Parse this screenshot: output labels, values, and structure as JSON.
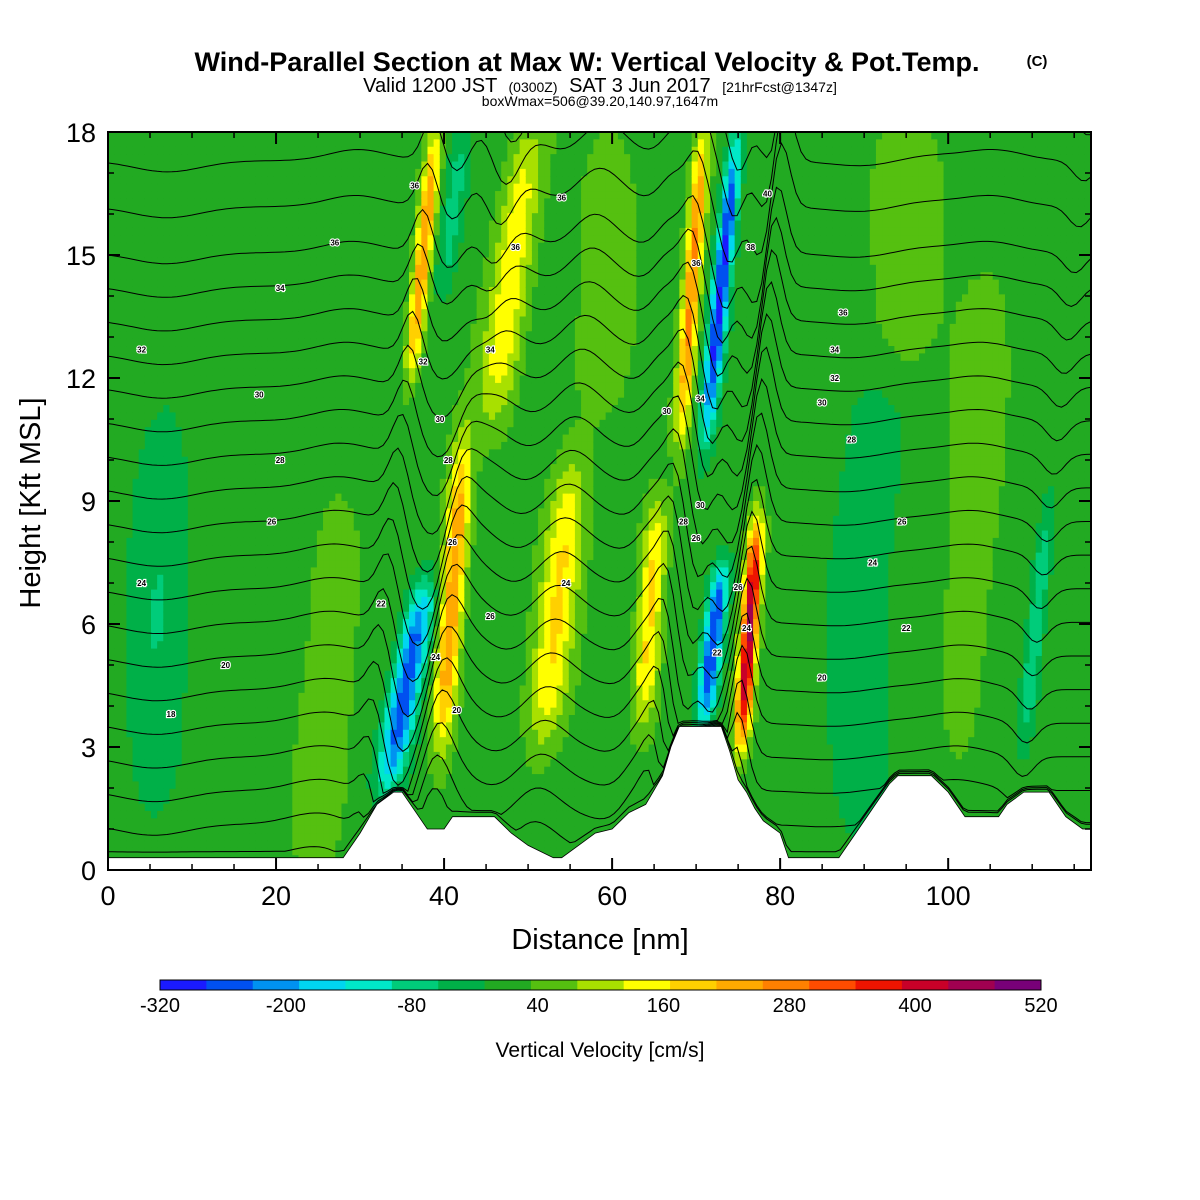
{
  "title": {
    "main": "Wind-Parallel Section at Max W: Vertical Velocity & Pot.Temp.",
    "copyright": "(C)",
    "valid_prefix": "Valid 1200 JST",
    "valid_utc": "(0300Z)",
    "valid_date": "SAT 3 Jun 2017",
    "forecast": "[21hrFcst@1347z]",
    "boxw": "boxWmax=506@39.20,140.97,1647m"
  },
  "chart_data": {
    "type": "heatmap",
    "xlabel": "Distance [nm]",
    "ylabel": "Height [Kft MSL]",
    "xlim": [
      0,
      117
    ],
    "ylim": [
      0,
      18
    ],
    "x_ticks": [
      0,
      20,
      40,
      60,
      80,
      100
    ],
    "y_ticks": [
      0,
      3,
      6,
      9,
      12,
      15,
      18
    ],
    "colorbar": {
      "label": "Vertical Velocity [cm/s]",
      "tick_labels": [
        "-320",
        "-200",
        "-80",
        "40",
        "160",
        "280",
        "400",
        "520"
      ],
      "range": [
        -320,
        520
      ],
      "colors": [
        "#1a1aff",
        "#0050f0",
        "#0092f0",
        "#00d6f0",
        "#00e8c8",
        "#00cc7a",
        "#00b048",
        "#22aa22",
        "#55c010",
        "#a8e000",
        "#ffff00",
        "#ffd000",
        "#ffaa00",
        "#ff8000",
        "#ff4c00",
        "#ee1400",
        "#c80028",
        "#a00050",
        "#780078"
      ]
    },
    "terrain": [
      [
        0,
        0.3
      ],
      [
        28,
        0.3
      ],
      [
        30,
        0.9
      ],
      [
        32,
        1.6
      ],
      [
        34,
        1.9
      ],
      [
        35,
        1.9
      ],
      [
        37,
        1.3
      ],
      [
        38,
        1.0
      ],
      [
        40,
        1.0
      ],
      [
        41,
        1.3
      ],
      [
        46,
        1.3
      ],
      [
        48,
        0.9
      ],
      [
        50,
        0.6
      ],
      [
        53,
        0.3
      ],
      [
        54,
        0.3
      ],
      [
        56,
        0.6
      ],
      [
        58,
        0.9
      ],
      [
        60,
        1.0
      ],
      [
        62,
        1.4
      ],
      [
        64,
        1.6
      ],
      [
        66,
        2.3
      ],
      [
        67,
        3.0
      ],
      [
        68,
        3.5
      ],
      [
        73,
        3.5
      ],
      [
        74,
        2.9
      ],
      [
        75,
        2.2
      ],
      [
        76,
        1.9
      ],
      [
        77,
        1.5
      ],
      [
        78,
        1.2
      ],
      [
        80,
        0.9
      ],
      [
        81,
        0.3
      ],
      [
        87,
        0.3
      ],
      [
        89,
        0.9
      ],
      [
        91,
        1.5
      ],
      [
        93,
        2.1
      ],
      [
        94,
        2.3
      ],
      [
        98,
        2.3
      ],
      [
        100,
        1.9
      ],
      [
        102,
        1.3
      ],
      [
        106,
        1.3
      ],
      [
        107,
        1.6
      ],
      [
        109,
        1.9
      ],
      [
        112,
        1.9
      ],
      [
        114,
        1.3
      ],
      [
        116,
        1.0
      ],
      [
        117,
        1.0
      ]
    ],
    "w_features": [
      {
        "x": 35.5,
        "zlo": 2.0,
        "zhi": 7.0,
        "w": -280,
        "sx": 1.8,
        "lean": 0.9
      },
      {
        "x": 41.0,
        "zlo": 3.0,
        "zhi": 10.5,
        "w": 240,
        "sx": 1.4,
        "lean": 0.35
      },
      {
        "x": 37.5,
        "zlo": 12.0,
        "zhi": 18.0,
        "w": 240,
        "sx": 1.0,
        "lean": 0.5
      },
      {
        "x": 41.0,
        "zlo": 14.0,
        "zhi": 18.0,
        "w": -90,
        "sx": 1.3,
        "lean": 0.6
      },
      {
        "x": 48.0,
        "zlo": 11.0,
        "zhi": 18.0,
        "w": 140,
        "sx": 2.2,
        "lean": 0.6
      },
      {
        "x": 53.5,
        "zlo": 3.0,
        "zhi": 10.0,
        "w": 150,
        "sx": 2.2,
        "lean": 0.5
      },
      {
        "x": 64.5,
        "zlo": 3.5,
        "zhi": 9.0,
        "w": 170,
        "sx": 1.5,
        "lean": 0.3
      },
      {
        "x": 72.0,
        "zlo": 3.6,
        "zhi": 7.5,
        "w": -300,
        "sx": 1.2,
        "lean": 0.55
      },
      {
        "x": 76.3,
        "zlo": 3.0,
        "zhi": 8.5,
        "w": 420,
        "sx": 0.95,
        "lean": 0.35
      },
      {
        "x": 69.5,
        "zlo": 10.5,
        "zhi": 18.0,
        "w": 250,
        "sx": 1.0,
        "lean": 0.35
      },
      {
        "x": 73.0,
        "zlo": 10.5,
        "zhi": 18.0,
        "w": -300,
        "sx": 1.0,
        "lean": 0.5
      },
      {
        "x": 110.5,
        "zlo": 3.0,
        "zhi": 9.0,
        "w": -110,
        "sx": 1.1,
        "lean": 0.5
      },
      {
        "x": 26.0,
        "zlo": 0.5,
        "zhi": 9.0,
        "w": 60,
        "sx": 3.0,
        "lean": 0.3
      },
      {
        "x": 6.0,
        "zlo": 0.5,
        "zhi": 12.0,
        "w": -60,
        "sx": 3.5,
        "lean": 0.1
      },
      {
        "x": 90.0,
        "zlo": 0.5,
        "zhi": 12.0,
        "w": -60,
        "sx": 4.0,
        "lean": 0.2
      },
      {
        "x": 95.0,
        "zlo": 12.0,
        "zhi": 18.0,
        "w": 60,
        "sx": 4.0,
        "lean": 0.3
      },
      {
        "x": 103.0,
        "zlo": 3.0,
        "zhi": 14.0,
        "w": 55,
        "sx": 3.0,
        "lean": 0.3
      },
      {
        "x": 59.0,
        "zlo": 11.0,
        "zhi": 18.0,
        "w": 60,
        "sx": 3.0,
        "lean": 0.4
      }
    ],
    "theta_contours": {
      "min": 18,
      "max": 40,
      "step": 1,
      "labels": [
        {
          "text": "36",
          "x": 27,
          "z": 15.3
        },
        {
          "text": "34",
          "x": 20.5,
          "z": 14.2
        },
        {
          "text": "32",
          "x": 4,
          "z": 12.7
        },
        {
          "text": "30",
          "x": 18,
          "z": 11.6
        },
        {
          "text": "28",
          "x": 20.5,
          "z": 10.0
        },
        {
          "text": "26",
          "x": 19.5,
          "z": 8.5
        },
        {
          "text": "24",
          "x": 4,
          "z": 7.0
        },
        {
          "text": "20",
          "x": 14,
          "z": 5.0
        },
        {
          "text": "18",
          "x": 7.5,
          "z": 3.8
        },
        {
          "text": "32",
          "x": 37.5,
          "z": 12.4
        },
        {
          "text": "30",
          "x": 39.5,
          "z": 11.0
        },
        {
          "text": "28",
          "x": 40.5,
          "z": 10.0
        },
        {
          "text": "26",
          "x": 41,
          "z": 8.0
        },
        {
          "text": "22",
          "x": 32.5,
          "z": 6.5
        },
        {
          "text": "26",
          "x": 45.5,
          "z": 6.2
        },
        {
          "text": "24",
          "x": 39,
          "z": 5.2
        },
        {
          "text": "20",
          "x": 41.5,
          "z": 3.9
        },
        {
          "text": "36",
          "x": 36.5,
          "z": 16.7
        },
        {
          "text": "36",
          "x": 48.5,
          "z": 15.2
        },
        {
          "text": "36",
          "x": 54,
          "z": 16.4
        },
        {
          "text": "34",
          "x": 45.5,
          "z": 12.7
        },
        {
          "text": "24",
          "x": 54.5,
          "z": 7.0
        },
        {
          "text": "36",
          "x": 70,
          "z": 14.8
        },
        {
          "text": "34",
          "x": 70.5,
          "z": 11.5
        },
        {
          "text": "30",
          "x": 66.5,
          "z": 11.2
        },
        {
          "text": "30",
          "x": 70.5,
          "z": 8.9
        },
        {
          "text": "28",
          "x": 68.5,
          "z": 8.5
        },
        {
          "text": "26",
          "x": 70,
          "z": 8.1
        },
        {
          "text": "26",
          "x": 75,
          "z": 6.9
        },
        {
          "text": "24",
          "x": 76,
          "z": 5.9
        },
        {
          "text": "22",
          "x": 72.5,
          "z": 5.3
        },
        {
          "text": "40",
          "x": 78.5,
          "z": 16.5
        },
        {
          "text": "38",
          "x": 76.5,
          "z": 15.2
        },
        {
          "text": "36",
          "x": 87.5,
          "z": 13.6
        },
        {
          "text": "34",
          "x": 86.5,
          "z": 12.7
        },
        {
          "text": "32",
          "x": 86.5,
          "z": 12.0
        },
        {
          "text": "30",
          "x": 85,
          "z": 11.4
        },
        {
          "text": "28",
          "x": 88.5,
          "z": 10.5
        },
        {
          "text": "26",
          "x": 94.5,
          "z": 8.5
        },
        {
          "text": "24",
          "x": 91,
          "z": 7.5
        },
        {
          "text": "22",
          "x": 95,
          "z": 5.9
        },
        {
          "text": "20",
          "x": 85,
          "z": 4.7
        }
      ]
    }
  }
}
